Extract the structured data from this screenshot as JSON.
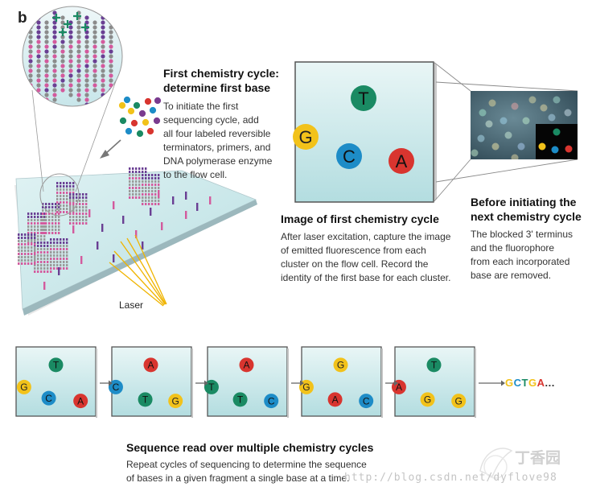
{
  "panel_label": "b",
  "first_cycle": {
    "title_line1": "First chemistry cycle:",
    "title_line2": "determine first base",
    "body": [
      "To initiate the first",
      "sequencing cycle, add",
      "all four labeled reversible",
      "terminators, primers, and",
      "DNA polymerase enzyme",
      "to the flow cell."
    ]
  },
  "laser_label": "Laser",
  "image_cycle": {
    "title": "Image of first chemistry cycle",
    "body": [
      "After laser excitation, capture the image",
      "of emitted fluorescence from each",
      "cluster on the flow cell. Record the",
      "identity of the first base for each cluster."
    ]
  },
  "before_next": {
    "title_line1": "Before initiating the",
    "title_line2": "next chemistry cycle",
    "body": [
      "The blocked 3' terminus",
      "and the fluorophore",
      "from each incorporated",
      "base are removed."
    ]
  },
  "colors": {
    "G": "#f2c21a",
    "T": "#1a8a63",
    "C": "#1d8cc7",
    "A": "#d8352f",
    "panel_top": "#e9f6f6",
    "panel_bottom": "#b3dde0"
  },
  "big_image_bases": [
    "T",
    "G",
    "C",
    "A"
  ],
  "cycle_panels": [
    [
      "T",
      "G",
      "C",
      "A"
    ],
    [
      "A",
      "C",
      "T",
      "G"
    ],
    [
      "A",
      "T",
      "T",
      "C"
    ],
    [
      "G",
      "G",
      "A",
      "C"
    ],
    [
      "T",
      "A",
      "G",
      "G"
    ]
  ],
  "sequence_result": {
    "letters": [
      "G",
      "C",
      "T",
      "G",
      "A"
    ],
    "suffix": "..."
  },
  "sequence_read": {
    "title": "Sequence read over multiple chemistry cycles",
    "body": [
      "Repeat cycles of sequencing to determine the sequence",
      "of bases in a given fragment a single base at a time."
    ]
  },
  "watermark": {
    "url": "http://blog.csdn.net/dyflove98",
    "logo_text": "丁香园"
  }
}
